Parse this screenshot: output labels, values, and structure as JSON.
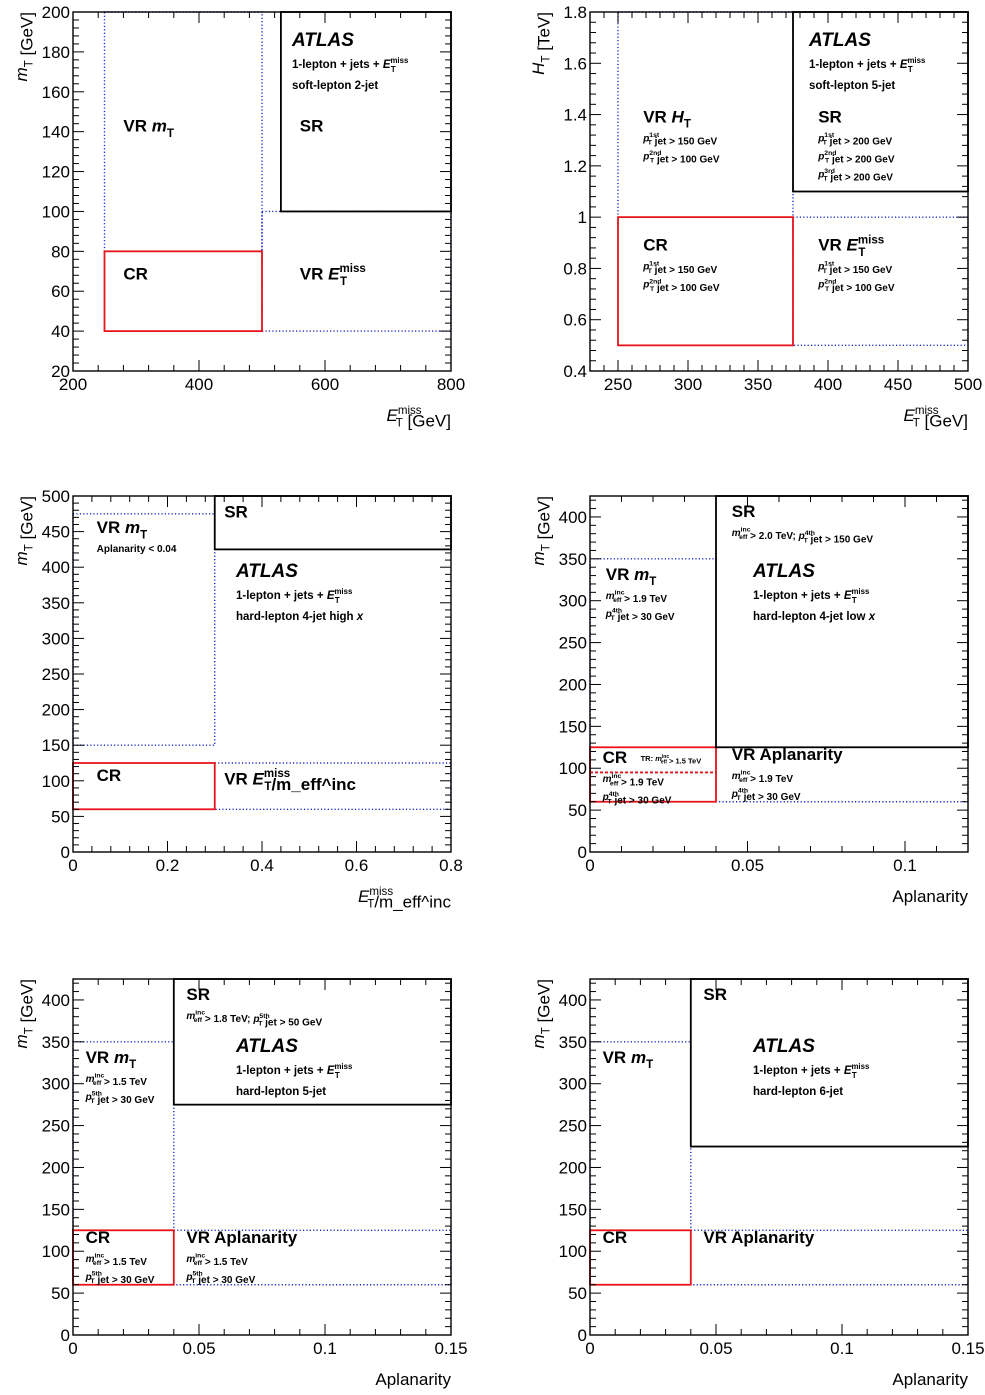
{
  "colors": {
    "cr": "#e8141c",
    "vr": "#1a28c8",
    "sr": "#000000",
    "sr_dark_blue": "#0a1050"
  },
  "chart_data": [
    {
      "type": "region-diagram",
      "xlabel": "E_T^miss [GeV]",
      "ylabel": "m_T [GeV]",
      "xlim": [
        200,
        800
      ],
      "ylim": [
        20,
        200
      ],
      "xticks": [
        "200",
        "400",
        "600",
        "800"
      ],
      "yticks": [
        "20",
        "40",
        "60",
        "80",
        "100",
        "120",
        "140",
        "160",
        "180",
        "200"
      ],
      "atlas": "ATLAS",
      "info": [
        "1-lepton + jets + E_T^miss",
        "soft-lepton 2-jet"
      ],
      "regions": [
        {
          "name": "VR m_T",
          "style": "vr",
          "x": [
            250,
            500
          ],
          "y": [
            80,
            200
          ],
          "open_top": true
        },
        {
          "name": "VR E_T^miss",
          "style": "vr",
          "x": [
            500,
            800
          ],
          "y": [
            40,
            100
          ],
          "open_right": true
        },
        {
          "name": "CR",
          "style": "cr",
          "x": [
            250,
            500
          ],
          "y": [
            40,
            80
          ]
        },
        {
          "name": "SR",
          "style": "sr",
          "x": [
            530,
            800
          ],
          "y": [
            100,
            200
          ],
          "open_top": true,
          "open_right": true
        }
      ],
      "labels": [
        {
          "text": "VR m_T",
          "x": 280,
          "y": 140
        },
        {
          "text": "VR E_T^miss",
          "x": 560,
          "y": 66
        },
        {
          "text": "CR",
          "x": 280,
          "y": 66
        },
        {
          "text": "SR",
          "x": 560,
          "y": 140
        }
      ]
    },
    {
      "type": "region-diagram",
      "xlabel": "E_T^miss [GeV]",
      "ylabel": "H_T [TeV]",
      "xlim": [
        230,
        500
      ],
      "ylim": [
        0.4,
        1.8
      ],
      "xticks": [
        "250",
        "300",
        "350",
        "400",
        "450",
        "500"
      ],
      "yticks": [
        "0.4",
        "0.6",
        "0.8",
        "1",
        "1.2",
        "1.4",
        "1.6",
        "1.8"
      ],
      "atlas": "ATLAS",
      "info": [
        "1-lepton + jets + E_T^miss",
        "soft-lepton 5-jet"
      ],
      "regions": [
        {
          "name": "VR H_T",
          "style": "vr",
          "x": [
            250,
            375
          ],
          "y": [
            1.0,
            1.8
          ],
          "open_top": true
        },
        {
          "name": "VR E_T^miss",
          "style": "vr",
          "x": [
            375,
            500
          ],
          "y": [
            0.5,
            1.0
          ],
          "open_right": true
        },
        {
          "name": "CR",
          "style": "cr",
          "x": [
            250,
            375
          ],
          "y": [
            0.5,
            1.0
          ]
        },
        {
          "name": "SR",
          "style": "sr",
          "x": [
            375,
            500
          ],
          "y": [
            1.1,
            1.8
          ],
          "open_top": true,
          "open_right": true
        }
      ],
      "labels": [
        {
          "text": "VR H_T",
          "x": 268,
          "y": 1.37,
          "cuts": [
            "p_T^1st jet > 150 GeV",
            "p_T^2nd jet > 100 GeV"
          ]
        },
        {
          "text": "CR",
          "x": 268,
          "y": 0.87,
          "cuts": [
            "p_T^1st jet > 150 GeV",
            "p_T^2nd jet > 100 GeV"
          ]
        },
        {
          "text": "VR E_T^miss",
          "x": 393,
          "y": 0.87,
          "cuts": [
            "p_T^1st jet > 150 GeV",
            "p_T^2nd jet > 100 GeV"
          ]
        },
        {
          "text": "SR",
          "x": 393,
          "y": 1.37,
          "cuts": [
            "p_T^1st jet > 200 GeV",
            "p_T^2nd jet > 200 GeV",
            "p_T^3rd jet > 200 GeV"
          ]
        }
      ]
    },
    {
      "type": "region-diagram",
      "xlabel": "E_T^miss/m_eff^inc",
      "ylabel": "m_T [GeV]",
      "xlim": [
        0,
        0.8
      ],
      "ylim": [
        0,
        500
      ],
      "xticks": [
        "0",
        "0.2",
        "0.4",
        "0.6",
        "0.8"
      ],
      "yticks": [
        "0",
        "50",
        "100",
        "150",
        "200",
        "250",
        "300",
        "350",
        "400",
        "450",
        "500"
      ],
      "atlas": "ATLAS",
      "info": [
        "1-lepton + jets + E_T^miss",
        "hard-lepton 4-jet high x"
      ],
      "regions": [
        {
          "name": "VR m_T",
          "style": "vr",
          "x": [
            0,
            0.3
          ],
          "y": [
            150,
            475
          ]
        },
        {
          "name": "VR E_T^miss/m_eff^inc",
          "style": "vr",
          "x": [
            0.3,
            0.8
          ],
          "y": [
            60,
            125
          ],
          "open_right": true
        },
        {
          "name": "CR",
          "style": "cr",
          "x": [
            0,
            0.3
          ],
          "y": [
            60,
            125
          ]
        },
        {
          "name": "SR",
          "style": "sr",
          "x": [
            0.3,
            0.8
          ],
          "y": [
            425,
            500
          ],
          "open_top": true,
          "open_right": true
        }
      ],
      "labels": [
        {
          "text": "VR m_T",
          "x": 0.05,
          "y": 448,
          "cuts": [
            "Aplanarity < 0.04"
          ]
        },
        {
          "text": "VR E_T^miss/m_eff^inc",
          "x": 0.32,
          "y": 95
        },
        {
          "text": "CR",
          "x": 0.05,
          "y": 100
        },
        {
          "text": "SR",
          "x": 0.32,
          "y": 470
        }
      ]
    },
    {
      "type": "region-diagram",
      "xlabel": "Aplanarity",
      "ylabel": "m_T [GeV]",
      "xlim": [
        0,
        0.12
      ],
      "ylim": [
        0,
        425
      ],
      "xticks": [
        "0",
        "0.05",
        "0.1"
      ],
      "yticks": [
        "0",
        "50",
        "100",
        "150",
        "200",
        "250",
        "300",
        "350",
        "400"
      ],
      "atlas": "ATLAS",
      "info": [
        "1-lepton + jets + E_T^miss",
        "hard-lepton 4-jet low x"
      ],
      "regions": [
        {
          "name": "VR m_T",
          "style": "vr",
          "x": [
            0,
            0.04
          ],
          "y": [
            125,
            350
          ]
        },
        {
          "name": "VR Aplanarity",
          "style": "vr",
          "x": [
            0.04,
            0.12
          ],
          "y": [
            60,
            125
          ],
          "open_right": true
        },
        {
          "name": "CR",
          "style": "cr",
          "x": [
            0,
            0.04
          ],
          "y": [
            60,
            125
          ],
          "split_y": 95
        },
        {
          "name": "SR",
          "style": "sr",
          "x": [
            0.04,
            0.12
          ],
          "y": [
            125,
            425
          ],
          "open_top": true,
          "open_right": true
        }
      ],
      "labels": [
        {
          "text": "VR m_T",
          "x": 0.005,
          "y": 325,
          "cuts": [
            "m_eff^inc > 1.9 TeV",
            "p_T^4th jet > 30 GeV"
          ]
        },
        {
          "text": "VR Aplanarity",
          "x": 0.045,
          "y": 110,
          "cuts": [
            "m_eff^inc > 1.9 TeV",
            "p_T^4th jet > 30 GeV"
          ]
        },
        {
          "text": "CR",
          "x": 0.004,
          "y": 106,
          "tag": "TR: m_eff^inc > 1.5 TeV",
          "cuts": [
            "m_eff^inc > 1.9 TeV",
            "p_T^4th jet > 30 GeV"
          ]
        },
        {
          "text": "SR",
          "x": 0.045,
          "y": 400,
          "cuts": [
            "m_eff^inc > 2.0 TeV; p_T^4th jet > 150 GeV"
          ]
        }
      ]
    },
    {
      "type": "region-diagram",
      "xlabel": "Aplanarity",
      "ylabel": "m_T [GeV]",
      "xlim": [
        0,
        0.15
      ],
      "ylim": [
        0,
        425
      ],
      "xticks": [
        "0",
        "0.05",
        "0.1",
        "0.15"
      ],
      "yticks": [
        "0",
        "50",
        "100",
        "150",
        "200",
        "250",
        "300",
        "350",
        "400"
      ],
      "atlas": "ATLAS",
      "info": [
        "1-lepton + jets + E_T^miss",
        "hard-lepton 5-jet"
      ],
      "regions": [
        {
          "name": "VR m_T",
          "style": "vr",
          "x": [
            0,
            0.04
          ],
          "y": [
            125,
            350
          ]
        },
        {
          "name": "VR Aplanarity",
          "style": "vr",
          "x": [
            0.04,
            0.15
          ],
          "y": [
            60,
            125
          ],
          "open_right": true
        },
        {
          "name": "CR",
          "style": "cr",
          "x": [
            0,
            0.04
          ],
          "y": [
            60,
            125
          ]
        },
        {
          "name": "SR",
          "style": "sr",
          "x": [
            0.04,
            0.15
          ],
          "y": [
            275,
            425
          ],
          "open_top": true,
          "open_right": true
        }
      ],
      "labels": [
        {
          "text": "VR m_T",
          "x": 0.005,
          "y": 325,
          "cuts": [
            "m_eff^inc > 1.5 TeV",
            "p_T^5th jet > 30 GeV"
          ]
        },
        {
          "text": "VR Aplanarity",
          "x": 0.045,
          "y": 110,
          "cuts": [
            "m_eff^inc > 1.5 TeV",
            "p_T^5th jet > 30 GeV"
          ]
        },
        {
          "text": "CR",
          "x": 0.005,
          "y": 110,
          "cuts": [
            "m_eff^inc > 1.5 TeV",
            "p_T^5th jet > 30 GeV"
          ]
        },
        {
          "text": "SR",
          "x": 0.045,
          "y": 400,
          "cuts": [
            "m_eff^inc > 1.8 TeV; p_T^5th jet > 50 GeV"
          ]
        }
      ]
    },
    {
      "type": "region-diagram",
      "xlabel": "Aplanarity",
      "ylabel": "m_T [GeV]",
      "xlim": [
        0,
        0.15
      ],
      "ylim": [
        0,
        425
      ],
      "xticks": [
        "0",
        "0.05",
        "0.1",
        "0.15"
      ],
      "yticks": [
        "0",
        "50",
        "100",
        "150",
        "200",
        "250",
        "300",
        "350",
        "400"
      ],
      "atlas": "ATLAS",
      "info": [
        "1-lepton + jets + E_T^miss",
        "hard-lepton 6-jet"
      ],
      "regions": [
        {
          "name": "VR m_T",
          "style": "vr",
          "x": [
            0,
            0.04
          ],
          "y": [
            125,
            350
          ]
        },
        {
          "name": "VR Aplanarity",
          "style": "vr",
          "x": [
            0.04,
            0.15
          ],
          "y": [
            60,
            125
          ],
          "open_right": true
        },
        {
          "name": "CR",
          "style": "cr",
          "x": [
            0,
            0.04
          ],
          "y": [
            60,
            125
          ]
        },
        {
          "name": "SR",
          "style": "sr",
          "x": [
            0.04,
            0.15
          ],
          "y": [
            225,
            425
          ],
          "open_top": true,
          "open_right": true
        }
      ],
      "labels": [
        {
          "text": "VR m_T",
          "x": 0.005,
          "y": 325
        },
        {
          "text": "VR Aplanarity",
          "x": 0.045,
          "y": 110
        },
        {
          "text": "CR",
          "x": 0.005,
          "y": 110
        },
        {
          "text": "SR",
          "x": 0.045,
          "y": 400
        }
      ]
    }
  ]
}
